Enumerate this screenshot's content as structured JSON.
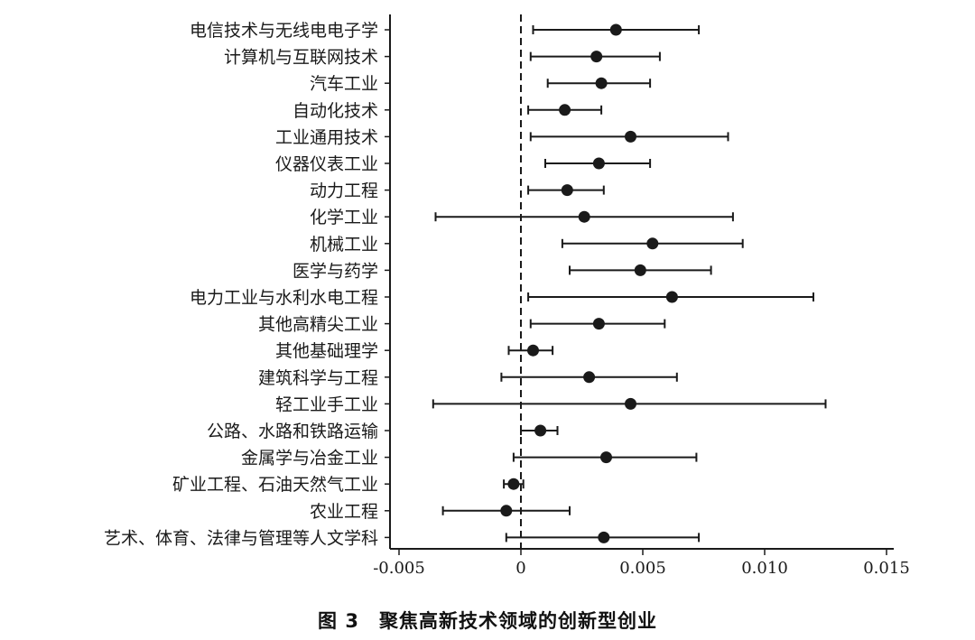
{
  "caption": "图 3　聚焦高新技术领域的创新型创业",
  "chart_data": {
    "type": "scatter",
    "subtype": "forest-plot",
    "title": "",
    "xlabel": "",
    "ylabel": "",
    "xlim": [
      -0.005,
      0.015
    ],
    "x_ticks": [
      -0.005,
      0,
      0.005,
      0.01,
      0.015
    ],
    "x_tick_labels": [
      "-0.005",
      "0",
      "0.005",
      "0.010",
      "0.015"
    ],
    "reference_line": 0,
    "grid": false,
    "colors": {
      "point": "#1a1a1a",
      "line": "#1a1a1a"
    },
    "rows": [
      {
        "label": "电信技术与无线电电子学",
        "estimate": 0.0039,
        "lower": 0.0005,
        "upper": 0.0073
      },
      {
        "label": "计算机与互联网技术",
        "estimate": 0.0031,
        "lower": 0.0004,
        "upper": 0.0057
      },
      {
        "label": "汽车工业",
        "estimate": 0.0033,
        "lower": 0.0011,
        "upper": 0.0053
      },
      {
        "label": "自动化技术",
        "estimate": 0.0018,
        "lower": 0.0003,
        "upper": 0.0033
      },
      {
        "label": "工业通用技术",
        "estimate": 0.0045,
        "lower": 0.0004,
        "upper": 0.0085
      },
      {
        "label": "仪器仪表工业",
        "estimate": 0.0032,
        "lower": 0.001,
        "upper": 0.0053
      },
      {
        "label": "动力工程",
        "estimate": 0.0019,
        "lower": 0.0003,
        "upper": 0.0034
      },
      {
        "label": "化学工业",
        "estimate": 0.0026,
        "lower": -0.0035,
        "upper": 0.0087
      },
      {
        "label": "机械工业",
        "estimate": 0.0054,
        "lower": 0.0017,
        "upper": 0.0091
      },
      {
        "label": "医学与药学",
        "estimate": 0.0049,
        "lower": 0.002,
        "upper": 0.0078
      },
      {
        "label": "电力工业与水利水电工程",
        "estimate": 0.0062,
        "lower": 0.0003,
        "upper": 0.012
      },
      {
        "label": "其他高精尖工业",
        "estimate": 0.0032,
        "lower": 0.0004,
        "upper": 0.0059
      },
      {
        "label": "其他基础理学",
        "estimate": 0.0005,
        "lower": -0.0005,
        "upper": 0.0013
      },
      {
        "label": "建筑科学与工程",
        "estimate": 0.0028,
        "lower": -0.0008,
        "upper": 0.0064
      },
      {
        "label": "轻工业手工业",
        "estimate": 0.0045,
        "lower": -0.0036,
        "upper": 0.0125
      },
      {
        "label": "公路、水路和铁路运输",
        "estimate": 0.0008,
        "lower": 0.0,
        "upper": 0.0015
      },
      {
        "label": "金属学与冶金工业",
        "estimate": 0.0035,
        "lower": -0.0003,
        "upper": 0.0072
      },
      {
        "label": "矿业工程、石油天然气工业",
        "estimate": -0.0003,
        "lower": -0.0007,
        "upper": 0.0001
      },
      {
        "label": "农业工程",
        "estimate": -0.0006,
        "lower": -0.0032,
        "upper": 0.002
      },
      {
        "label": "艺术、体育、法律与管理等人文学科",
        "estimate": 0.0034,
        "lower": -0.0006,
        "upper": 0.0073
      }
    ]
  }
}
